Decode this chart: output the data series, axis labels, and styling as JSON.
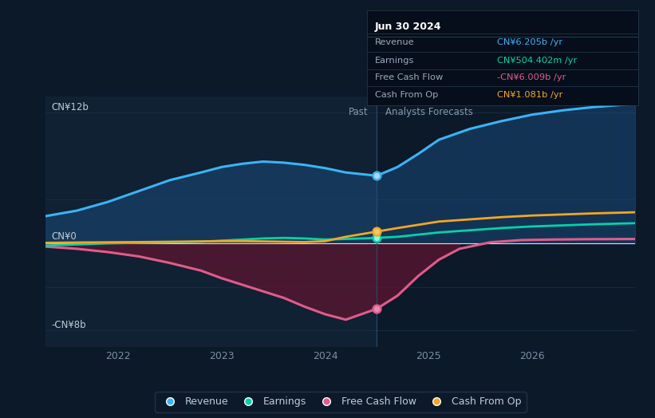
{
  "bg_color": "#0b1929",
  "chart_bg": "#0b1929",
  "grid_color": "#1a2e44",
  "zero_line_color": "#e0e0e0",
  "title_box": {
    "date": "Jun 30 2024",
    "items": [
      {
        "label": "Revenue",
        "value": "CN¥6.205b /yr",
        "color": "#3ab4f5"
      },
      {
        "label": "Earnings",
        "value": "CN¥504.402m /yr",
        "color": "#00d4aa"
      },
      {
        "label": "Free Cash Flow",
        "value": "-CN¥6.009b /yr",
        "color": "#e05c8a"
      },
      {
        "label": "Cash From Op",
        "value": "CN¥1.081b /yr",
        "color": "#f5a623"
      }
    ]
  },
  "ylabel_top": "CN¥12b",
  "ylabel_mid": "CN¥0",
  "ylabel_bot": "-CN¥8b",
  "ylim": [
    -9.5,
    13.5
  ],
  "xlim": [
    2021.3,
    2027.0
  ],
  "past_line_x": 2024.5,
  "past_label": "Past",
  "forecast_label": "Analysts Forecasts",
  "xticks": [
    2022,
    2023,
    2024,
    2025,
    2026
  ],
  "marker_x": 2024.5,
  "revenue_color": "#3ab4f5",
  "earnings_color": "#00d4aa",
  "fcf_color": "#e05c8a",
  "cashop_color": "#f5a623",
  "revenue_fill": "#1a4a7a",
  "fcf_fill": "#5c1530",
  "revenue": {
    "x": [
      2021.3,
      2021.6,
      2021.9,
      2022.2,
      2022.5,
      2022.8,
      2023.0,
      2023.2,
      2023.4,
      2023.6,
      2023.8,
      2024.0,
      2024.2,
      2024.5,
      2024.7,
      2024.9,
      2025.1,
      2025.4,
      2025.7,
      2026.0,
      2026.3,
      2026.6,
      2027.0
    ],
    "y": [
      2.5,
      3.0,
      3.8,
      4.8,
      5.8,
      6.5,
      7.0,
      7.3,
      7.5,
      7.4,
      7.2,
      6.9,
      6.5,
      6.2,
      7.0,
      8.2,
      9.5,
      10.5,
      11.2,
      11.8,
      12.2,
      12.5,
      12.8
    ]
  },
  "earnings": {
    "x": [
      2021.3,
      2021.6,
      2021.9,
      2022.2,
      2022.5,
      2022.8,
      2023.0,
      2023.2,
      2023.4,
      2023.6,
      2023.8,
      2024.0,
      2024.2,
      2024.5,
      2024.7,
      2024.9,
      2025.1,
      2025.4,
      2025.7,
      2026.0,
      2026.3,
      2026.6,
      2027.0
    ],
    "y": [
      -0.2,
      -0.1,
      0.0,
      0.05,
      0.1,
      0.15,
      0.25,
      0.35,
      0.45,
      0.5,
      0.45,
      0.35,
      0.4,
      0.5,
      0.6,
      0.8,
      1.0,
      1.2,
      1.4,
      1.55,
      1.65,
      1.75,
      1.85
    ]
  },
  "fcf": {
    "x": [
      2021.3,
      2021.6,
      2021.9,
      2022.2,
      2022.5,
      2022.8,
      2023.0,
      2023.2,
      2023.4,
      2023.6,
      2023.8,
      2024.0,
      2024.2,
      2024.5,
      2024.7,
      2024.9,
      2025.1,
      2025.3,
      2025.6,
      2025.9,
      2026.2,
      2026.5,
      2027.0
    ],
    "y": [
      -0.3,
      -0.5,
      -0.8,
      -1.2,
      -1.8,
      -2.5,
      -3.2,
      -3.8,
      -4.4,
      -5.0,
      -5.8,
      -6.5,
      -7.0,
      -6.0,
      -4.8,
      -3.0,
      -1.5,
      -0.5,
      0.1,
      0.3,
      0.35,
      0.38,
      0.4
    ]
  },
  "cashop": {
    "x": [
      2021.3,
      2021.6,
      2021.9,
      2022.2,
      2022.5,
      2022.8,
      2023.0,
      2023.2,
      2023.4,
      2023.6,
      2023.8,
      2024.0,
      2024.2,
      2024.5,
      2024.7,
      2024.9,
      2025.1,
      2025.4,
      2025.7,
      2026.0,
      2026.3,
      2026.6,
      2027.0
    ],
    "y": [
      0.05,
      0.08,
      0.1,
      0.12,
      0.15,
      0.18,
      0.2,
      0.2,
      0.18,
      0.15,
      0.12,
      0.2,
      0.6,
      1.08,
      1.4,
      1.7,
      2.0,
      2.2,
      2.4,
      2.55,
      2.65,
      2.75,
      2.85
    ]
  },
  "legend": [
    {
      "label": "Revenue",
      "color": "#3ab4f5"
    },
    {
      "label": "Earnings",
      "color": "#00d4aa"
    },
    {
      "label": "Free Cash Flow",
      "color": "#e05c8a"
    },
    {
      "label": "Cash From Op",
      "color": "#f5a623"
    }
  ]
}
